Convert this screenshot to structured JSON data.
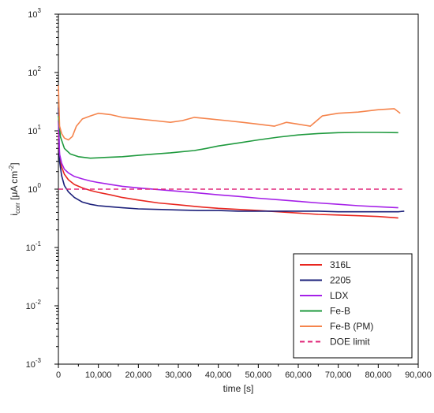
{
  "chart_data": {
    "type": "line",
    "xlabel": "time [s]",
    "ylabel": {
      "base": "i",
      "sub": "corr",
      "unit_pre": " [μA cm",
      "sup": "-2",
      "unit_post": "]"
    },
    "xlim": [
      0,
      90000
    ],
    "ylim": [
      0.001,
      1000
    ],
    "yscale": "log",
    "grid": false,
    "legend_position": "bottom-right",
    "x_ticks": [
      0,
      10000,
      20000,
      30000,
      40000,
      50000,
      60000,
      70000,
      80000,
      90000
    ],
    "x_tick_labels": [
      "0",
      "10,000",
      "20,000",
      "30,000",
      "40,000",
      "50,000",
      "60,000",
      "70,000",
      "80,000",
      "90,000"
    ],
    "y_ticks": [
      {
        "value": 0.001,
        "base": "10",
        "exp": "-3"
      },
      {
        "value": 0.01,
        "base": "10",
        "exp": "-2"
      },
      {
        "value": 0.1,
        "base": "10",
        "exp": "-1"
      },
      {
        "value": 1,
        "base": "10",
        "exp": "0"
      },
      {
        "value": 10,
        "base": "10",
        "exp": "1"
      },
      {
        "value": 100,
        "base": "10",
        "exp": "2"
      },
      {
        "value": 1000,
        "base": "10",
        "exp": "3"
      }
    ],
    "series": [
      {
        "name": "316L",
        "color": "#e8261f",
        "dash": false,
        "x": [
          0,
          300,
          800,
          1500,
          2500,
          4000,
          6000,
          8000,
          10000,
          13000,
          16000,
          20000,
          25000,
          30000,
          35000,
          40000,
          45000,
          50000,
          55000,
          60000,
          65000,
          70000,
          75000,
          80000,
          85000
        ],
        "y": [
          10,
          3.5,
          2.4,
          1.8,
          1.45,
          1.2,
          1.05,
          0.95,
          0.88,
          0.8,
          0.72,
          0.65,
          0.58,
          0.54,
          0.5,
          0.47,
          0.45,
          0.43,
          0.41,
          0.39,
          0.37,
          0.36,
          0.35,
          0.34,
          0.32
        ]
      },
      {
        "name": "2205",
        "color": "#1b1f7a",
        "dash": false,
        "x": [
          0,
          300,
          800,
          1500,
          2500,
          4000,
          6000,
          8000,
          10000,
          13000,
          16000,
          20000,
          25000,
          30000,
          35000,
          40000,
          45000,
          50000,
          55000,
          60000,
          65000,
          70000,
          75000,
          80000,
          85000,
          86500
        ],
        "y": [
          25,
          3.0,
          1.7,
          1.15,
          0.9,
          0.72,
          0.6,
          0.55,
          0.52,
          0.5,
          0.48,
          0.46,
          0.45,
          0.44,
          0.43,
          0.43,
          0.42,
          0.42,
          0.42,
          0.42,
          0.42,
          0.41,
          0.41,
          0.41,
          0.41,
          0.42
        ]
      },
      {
        "name": "LDX",
        "color": "#a520e8",
        "dash": false,
        "x": [
          0,
          300,
          800,
          1500,
          2500,
          4000,
          6000,
          8000,
          10000,
          13000,
          16000,
          20000,
          25000,
          30000,
          35000,
          40000,
          45000,
          50000,
          55000,
          60000,
          65000,
          70000,
          75000,
          80000,
          85000
        ],
        "y": [
          15,
          4.0,
          2.8,
          2.2,
          1.9,
          1.65,
          1.5,
          1.38,
          1.3,
          1.2,
          1.12,
          1.05,
          0.98,
          0.92,
          0.86,
          0.8,
          0.75,
          0.7,
          0.66,
          0.62,
          0.58,
          0.55,
          0.52,
          0.5,
          0.48
        ]
      },
      {
        "name": "Fe-B",
        "color": "#1f9a3e",
        "dash": false,
        "x": [
          0,
          500,
          1500,
          3000,
          5000,
          8000,
          12000,
          16000,
          20000,
          24000,
          28000,
          31000,
          34000,
          37000,
          40000,
          45000,
          50000,
          55000,
          60000,
          65000,
          70000,
          75000,
          80000,
          85000
        ],
        "y": [
          18,
          8.0,
          5.0,
          4.0,
          3.6,
          3.4,
          3.5,
          3.6,
          3.8,
          4.0,
          4.2,
          4.4,
          4.6,
          5.0,
          5.5,
          6.2,
          7.0,
          7.8,
          8.5,
          9.0,
          9.3,
          9.4,
          9.4,
          9.3
        ]
      },
      {
        "name": "Fe-B (PM)",
        "color": "#f5844c",
        "dash": false,
        "x": [
          0,
          300,
          800,
          1500,
          2500,
          3500,
          4500,
          6000,
          8000,
          10000,
          13000,
          16000,
          20000,
          24000,
          28000,
          31000,
          34000,
          38000,
          42000,
          46000,
          50000,
          54000,
          57000,
          60000,
          63000,
          66000,
          70000,
          75000,
          80000,
          84000,
          85500
        ],
        "y": [
          60,
          12,
          9,
          7.5,
          7.0,
          8.0,
          12,
          16,
          18,
          20,
          19,
          17,
          16,
          15,
          14,
          15,
          17,
          16,
          15,
          14,
          13,
          12,
          14,
          13,
          12,
          18,
          20,
          21,
          23,
          24,
          20
        ]
      },
      {
        "name": "DOE limit",
        "color": "#e0287a",
        "dash": true,
        "x": [
          0,
          86000
        ],
        "y": [
          1,
          1
        ]
      }
    ]
  }
}
